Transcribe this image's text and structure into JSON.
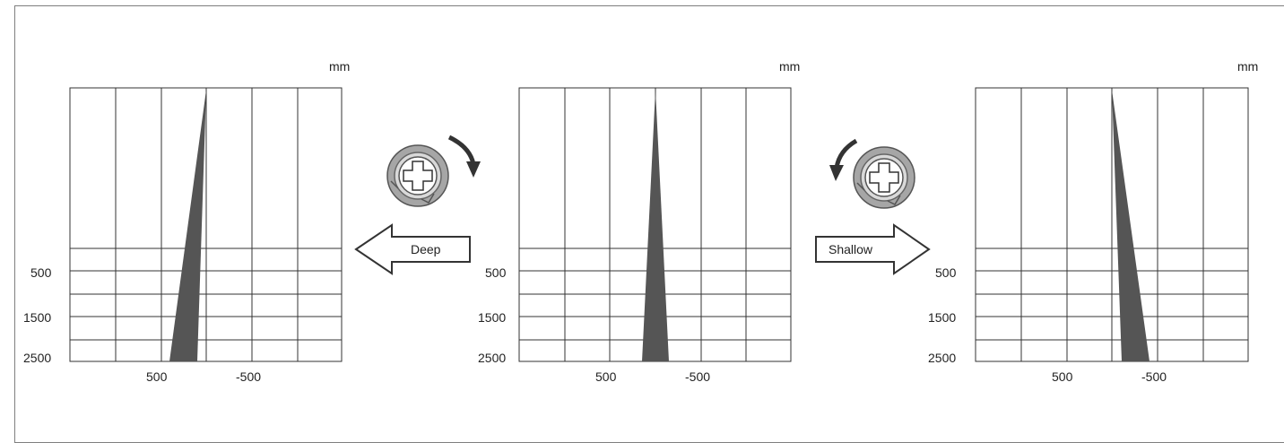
{
  "unit": "mm",
  "y_tick_labels": [
    "500",
    "1500",
    "2500"
  ],
  "x_tick_labels": [
    "500",
    "-500"
  ],
  "arrows": {
    "deep": "Deep",
    "shallow": "Shallow"
  },
  "panels": [
    {
      "id": "deep"
    },
    {
      "id": "standard"
    },
    {
      "id": "shallow"
    }
  ],
  "colors": {
    "beam": "#555555",
    "grid": "#333333",
    "knob_ring": "#9b9b9b"
  },
  "icons": {
    "knob": "adjustment-screw-icon",
    "rotate_cw": "rotate-clockwise-arrow-icon",
    "rotate_ccw": "rotate-counterclockwise-arrow-icon"
  }
}
